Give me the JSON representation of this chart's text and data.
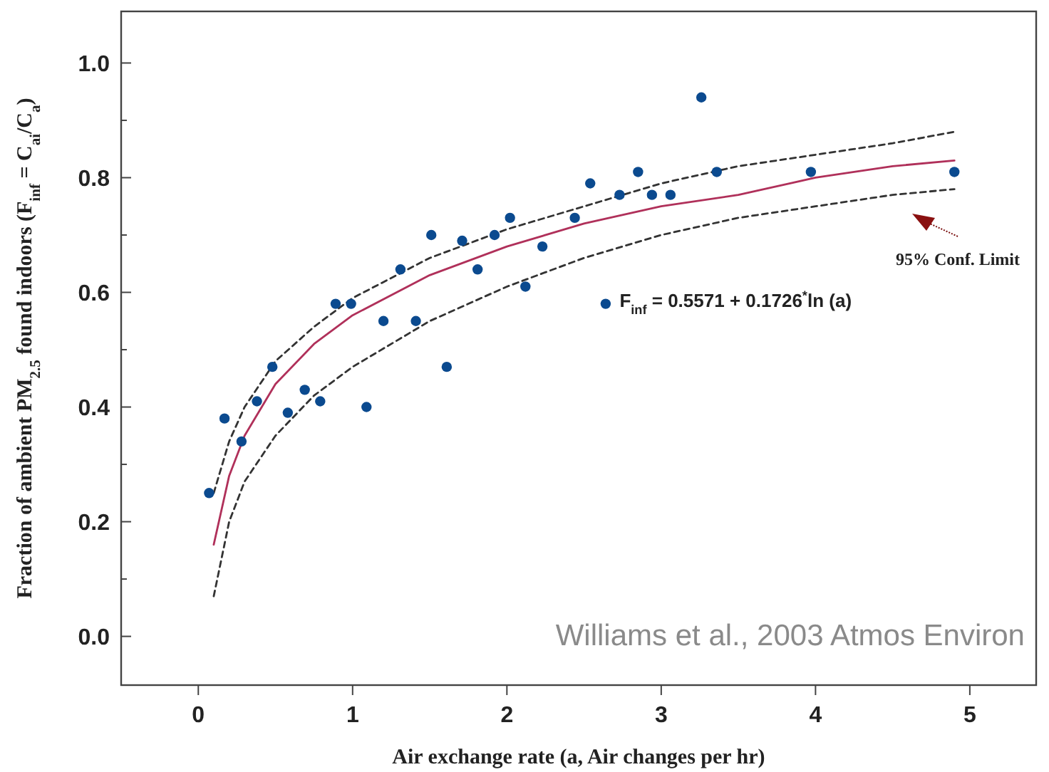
{
  "chart_data": {
    "type": "scatter",
    "xlabel": "Air exchange rate (a, Air changes per hr)",
    "ylabel": "Fraction of ambient PM$_{2.5}$ found indoors (F$_{inf}$ = C$_{ai}$/C$_{a}$)",
    "xlim": [
      -0.5,
      5.43
    ],
    "ylim": [
      -0.085,
      1.09
    ],
    "xticks": [
      0,
      1,
      2,
      3,
      4,
      5
    ],
    "yticks": [
      {
        "value": 0,
        "label": "0.0"
      },
      {
        "value": 0.1,
        "label": null
      },
      {
        "value": 0.2,
        "label": "0.2"
      },
      {
        "value": 0.3,
        "label": null
      },
      {
        "value": 0.4,
        "label": "0.4"
      },
      {
        "value": 0.5,
        "label": null
      },
      {
        "value": 0.6,
        "label": "0.6"
      },
      {
        "value": 0.7,
        "label": null
      },
      {
        "value": 0.8,
        "label": "0.8"
      },
      {
        "value": 0.9,
        "label": null
      },
      {
        "value": 1.0,
        "label": "1.0"
      }
    ],
    "grid": false,
    "series": [
      {
        "marker": "circle",
        "color": "#0b4a8f",
        "x": [
          0.07,
          0.17,
          0.28,
          0.38,
          0.48,
          0.58,
          0.69,
          0.79,
          0.89,
          0.99,
          1.09,
          1.2,
          1.31,
          1.41,
          1.51,
          1.61,
          1.71,
          1.81,
          1.92,
          2.02,
          2.12,
          2.23,
          2.44,
          2.54,
          2.64,
          2.73,
          2.85,
          2.94,
          3.06,
          3.26,
          3.36,
          3.97,
          4.9
        ],
        "values": [
          0.25,
          0.38,
          0.34,
          0.41,
          0.47,
          0.39,
          0.43,
          0.41,
          0.58,
          0.58,
          0.4,
          0.55,
          0.64,
          0.55,
          0.7,
          0.47,
          0.69,
          0.64,
          0.7,
          0.73,
          0.61,
          0.68,
          0.73,
          0.79,
          0.58,
          0.77,
          0.81,
          0.77,
          0.77,
          0.94,
          0.81,
          0.81,
          0.81
        ]
      },
      {
        "type": "line",
        "color": "#b0305a",
        "line_style": "solid",
        "x": [
          0.1,
          0.2,
          0.3,
          0.5,
          0.75,
          1,
          1.5,
          2,
          2.5,
          3,
          3.5,
          4,
          4.5,
          4.9
        ],
        "values": [
          0.16,
          0.28,
          0.35,
          0.44,
          0.51,
          0.56,
          0.63,
          0.68,
          0.72,
          0.75,
          0.77,
          0.8,
          0.82,
          0.83
        ]
      },
      {
        "type": "line",
        "color": "#333333",
        "line_style": "dashed",
        "x": [
          0.1,
          0.2,
          0.3,
          0.5,
          0.75,
          1,
          1.5,
          2,
          2.5,
          3,
          3.5,
          4,
          4.5,
          4.9
        ],
        "values": [
          0.25,
          0.34,
          0.4,
          0.48,
          0.54,
          0.59,
          0.66,
          0.71,
          0.75,
          0.79,
          0.82,
          0.84,
          0.86,
          0.88
        ]
      },
      {
        "type": "line",
        "color": "#333333",
        "line_style": "dashed",
        "x": [
          0.1,
          0.2,
          0.3,
          0.5,
          0.75,
          1,
          1.5,
          2,
          2.5,
          3,
          3.5,
          4,
          4.5,
          4.9
        ],
        "values": [
          0.07,
          0.2,
          0.27,
          0.35,
          0.42,
          0.47,
          0.55,
          0.61,
          0.66,
          0.7,
          0.73,
          0.75,
          0.77,
          0.78
        ]
      }
    ],
    "annotations": [
      "95% Conf. Limit",
      "F$_{inf}$ = 0.5571 + 0.1726$^{*}$ln (a)",
      "Williams et al., 2003 Atmos Environ"
    ]
  }
}
